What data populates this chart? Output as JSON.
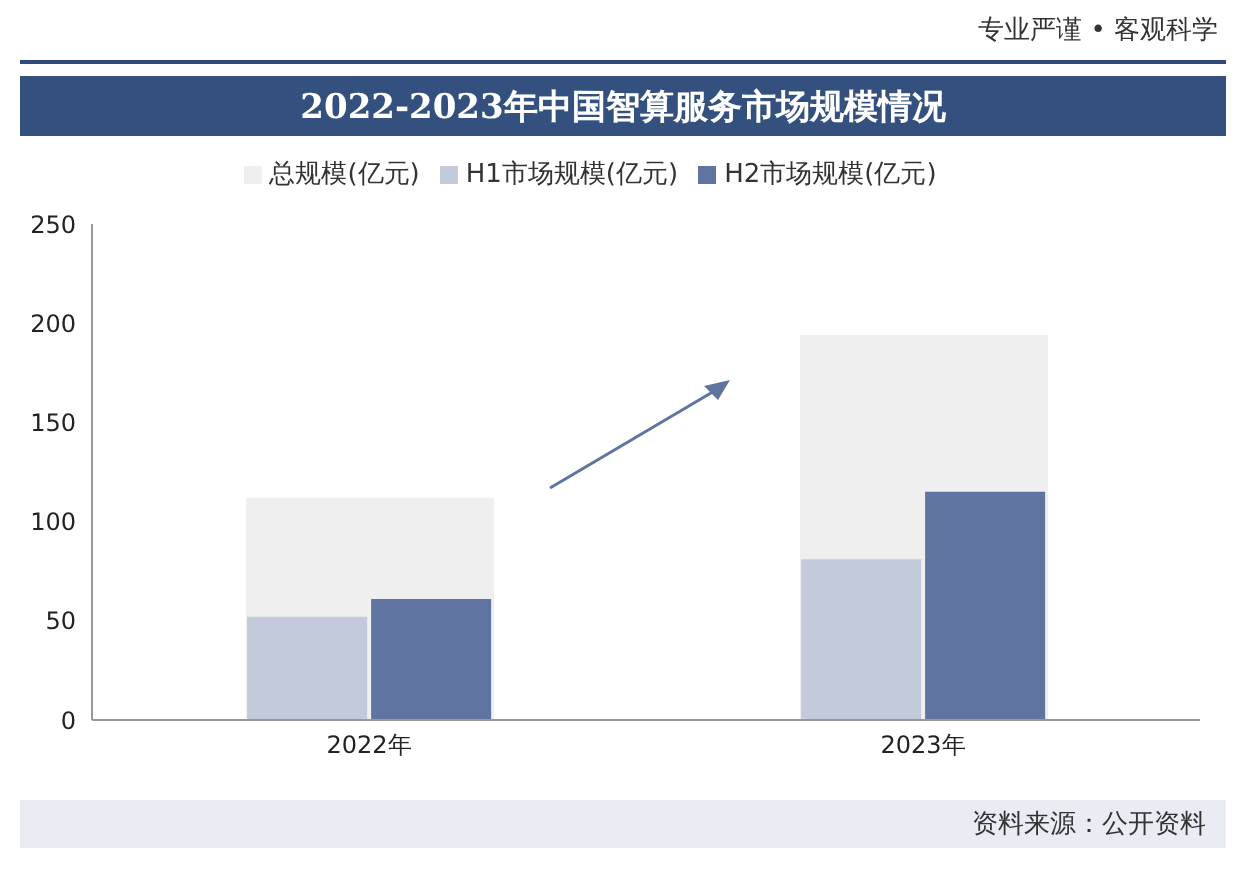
{
  "chart_data": {
    "type": "bar",
    "title": "2022-2023年中国智算服务市场规模情况",
    "categories": [
      "2022年",
      "2023年"
    ],
    "series": [
      {
        "name": "总规模(亿元)",
        "color": "#efefef",
        "values": [
          112,
          194
        ]
      },
      {
        "name": "H1市场规模(亿元)",
        "color": "#c3cad9",
        "values": [
          52,
          81
        ]
      },
      {
        "name": "H2市场规模(亿元)",
        "color": "#5f74a0",
        "values": [
          61,
          115
        ]
      }
    ],
    "ylim": [
      0,
      250
    ],
    "yticks": [
      0,
      50,
      100,
      150,
      200,
      250
    ],
    "legend": "top",
    "annotations": [
      "专业严谨 • 客观科学",
      "资料来源：公开资料"
    ]
  }
}
